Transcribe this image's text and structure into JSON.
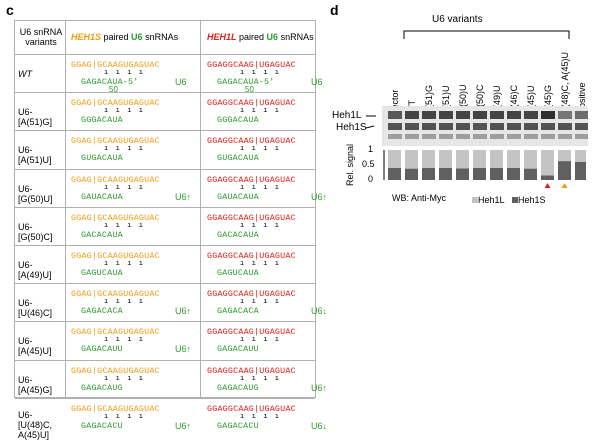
{
  "panel_c": {
    "letter": "c",
    "header": {
      "col1": "U6 snRNA variants",
      "col2": {
        "gene": "HEH1S",
        "mid": " paired ",
        "u6": "U6",
        "tail": " snRNAs"
      },
      "col3": {
        "gene": "HEH1L",
        "mid": " paired ",
        "u6": "U6",
        "tail": " snRNAs"
      }
    },
    "rows": [
      {
        "variant": "WT",
        "s_top": "GGAG|GCAAGUGAGUAC",
        "s_bot": "GAGACAUA-5'",
        "s_label": "U6",
        "s_num": "50",
        "l_top": "GGAGGCAAG|UGAGUAC",
        "l_bot": "GAGACAUA-5'",
        "l_label": "U6",
        "l_num": "50"
      },
      {
        "variant": "U6-[A(51)G]",
        "s_top": "GGAG|GCAAGUGAGUAC",
        "s_bot": "GGGACAUA",
        "s_label": "",
        "l_top": "GGAGGCAAG|UGAGUAC",
        "l_bot": "GGGACAUA",
        "l_label": ""
      },
      {
        "variant": "U6-[A(51)U]",
        "s_top": "GGAG|GCAAGUGAGUAC",
        "s_bot": "GUGACAUA",
        "s_label": "",
        "l_top": "GGAGGCAAG|UGAGUAC",
        "l_bot": "GUGACAUA",
        "l_label": ""
      },
      {
        "variant": "U6-[G(50)U]",
        "s_top": "GGAG|GCAAGUGAGUAC",
        "s_bot": "GAUACAUA",
        "s_label": "U6↑",
        "l_top": "GGAGGCAAG|UGAGUAC",
        "l_bot": "GAUACAUA",
        "l_label": "U6↑"
      },
      {
        "variant": "U6-[G(50)C]",
        "s_top": "GGAG|GCAAGUGAGUAC",
        "s_bot": "GACACAUA",
        "s_label": "",
        "l_top": "GGAGGCAAG|UGAGUAC",
        "l_bot": "GACACAUA",
        "l_label": ""
      },
      {
        "variant": "U6-[A(49)U]",
        "s_top": "GGAG|GCAAGUGAGUAC",
        "s_bot": "GAGUCAUA",
        "s_label": "",
        "l_top": "GGAGGCAAG|UGAGUAC",
        "l_bot": "GAGUCAUA",
        "l_label": ""
      },
      {
        "variant": "U6-[U(46)C]",
        "s_top": "GGAG|GCAAGUGAGUAC",
        "s_bot": "GAGACACA",
        "s_label": "U6↑",
        "l_top": "GGAGGCAAG|UGAGUAC",
        "l_bot": "GAGACACA",
        "l_label": "U6↓"
      },
      {
        "variant": "U6-[A(45)U]",
        "s_top": "GGAG|GCAAGUGAGUAC",
        "s_bot": "GAGACAUU",
        "s_label": "U6↑",
        "l_top": "GGAGGCAAG|UGAGUAC",
        "l_bot": "GAGACAUU",
        "l_label": ""
      },
      {
        "variant": "U6-[A(45)G]",
        "s_top": "GGAG|GCAAGUGAGUAC",
        "s_bot": "GAGACAUG",
        "s_label": "",
        "l_top": "GGAGGCAAG|UGAGUAC",
        "l_bot": "GAGACAUG",
        "l_label": "U6↑"
      },
      {
        "variant": "U6-[U(48)C, A(45)U]",
        "s_top": "GGAG|GCAAGUGAGUAC",
        "s_bot": "GAGACACU",
        "s_label": "U6↑",
        "l_top": "GGAGGCAAG|UGAGUAC",
        "l_bot": "GAGACACU",
        "l_label": "U6↓"
      }
    ]
  },
  "panel_d": {
    "letter": "d",
    "group_label": "U6 variants",
    "lanes": [
      "vector",
      "WT",
      "A(51)G",
      "A(51)U",
      "G(50)U",
      "G(50)C",
      "A(49)U",
      "U(46)C",
      "A(45)U",
      "A(45)G",
      "U(48)C, A(45)U",
      "Positive"
    ],
    "band_labels": [
      "Heh1L",
      "Heh1S"
    ],
    "y_axis_label": "Rel. signal",
    "y_ticks": [
      "1",
      "0.5",
      "0"
    ],
    "wb_label": "WB: Anti-Myc",
    "legend": [
      {
        "label": "Heh1L",
        "color": "#c4c4c4"
      },
      {
        "label": "Heh1S",
        "color": "#606060"
      }
    ],
    "markers": [
      {
        "lane": 9,
        "color": "#e0201b"
      },
      {
        "lane": 10,
        "color": "#f39c12"
      }
    ]
  },
  "chart_data": {
    "type": "bar",
    "categories": [
      "vector",
      "WT",
      "A(51)G",
      "A(51)U",
      "G(50)U",
      "G(50)C",
      "A(49)U",
      "U(46)C",
      "A(45)U",
      "A(45)G",
      "U(48)C, A(45)U",
      "Positive"
    ],
    "series": [
      {
        "name": "Heh1S",
        "values": [
          0.4,
          0.38,
          0.4,
          0.4,
          0.39,
          0.4,
          0.4,
          0.4,
          0.38,
          0.15,
          0.63,
          0.6
        ]
      },
      {
        "name": "Heh1L",
        "values": [
          0.6,
          0.62,
          0.6,
          0.6,
          0.61,
          0.6,
          0.6,
          0.6,
          0.62,
          0.85,
          0.37,
          0.4
        ]
      }
    ],
    "ylabel": "Rel. signal",
    "ylim": [
      0,
      1
    ],
    "stacked": true
  }
}
